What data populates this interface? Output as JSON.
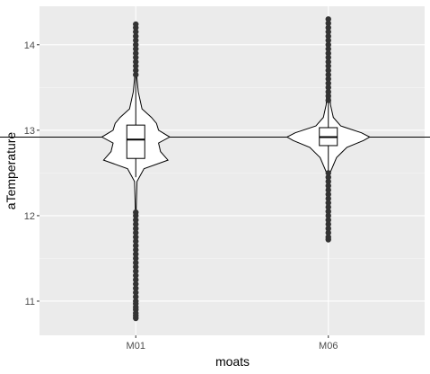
{
  "chart_data": {
    "type": "violin-boxplot",
    "title": "",
    "xlabel": "moats",
    "ylabel": "aTemperature",
    "categories": [
      "M01",
      "M06"
    ],
    "ylim": [
      10.6,
      14.45
    ],
    "yticks": [
      11,
      12,
      13,
      14
    ],
    "grid": true,
    "reference_line": 12.92,
    "colors": {
      "panel": "#ebebeb",
      "grid_major": "#ffffff",
      "grid_minor": "#f5f5f5",
      "violin_fill": "#ffffff",
      "outline": "#000000",
      "outlier": "#333333"
    },
    "series": [
      {
        "category": "M01",
        "min": 10.8,
        "max": 14.25,
        "whisker_low": 12.45,
        "whisker_high": 13.65,
        "q1": 12.67,
        "median": 12.89,
        "q3": 13.06,
        "outliers_low": [
          10.8,
          10.83,
          10.86,
          10.9,
          10.93,
          10.97,
          11.0,
          11.05,
          11.1,
          11.15,
          11.2,
          11.25,
          11.3,
          11.35,
          11.4,
          11.45,
          11.5,
          11.55,
          11.6,
          11.65,
          11.7,
          11.75,
          11.8,
          11.85,
          11.9,
          11.95,
          12.0,
          12.04
        ],
        "outliers_high": [
          13.65,
          13.7,
          13.75,
          13.8,
          13.85,
          13.9,
          13.95,
          14.0,
          14.05,
          14.1,
          14.15,
          14.2,
          14.24
        ],
        "density": [
          [
            10.8,
            0.004
          ],
          [
            12.0,
            0.006
          ],
          [
            12.4,
            0.03
          ],
          [
            12.55,
            0.2
          ],
          [
            12.65,
            0.78
          ],
          [
            12.75,
            0.6
          ],
          [
            12.85,
            0.55
          ],
          [
            12.92,
            0.82
          ],
          [
            13.0,
            0.55
          ],
          [
            13.08,
            0.5
          ],
          [
            13.15,
            0.38
          ],
          [
            13.25,
            0.15
          ],
          [
            13.45,
            0.06
          ],
          [
            13.65,
            0.02
          ],
          [
            14.25,
            0.004
          ]
        ]
      },
      {
        "category": "M06",
        "min": 11.72,
        "max": 14.32,
        "whisker_low": 12.5,
        "whisker_high": 13.35,
        "q1": 12.82,
        "median": 12.92,
        "q3": 13.03,
        "outliers_low": [
          11.72,
          11.75,
          11.8,
          11.85,
          11.9,
          11.95,
          12.0,
          12.05,
          12.1,
          12.15,
          12.2,
          12.25,
          12.3,
          12.35,
          12.4,
          12.45,
          12.5
        ],
        "outliers_high": [
          13.35,
          13.4,
          13.45,
          13.5,
          13.55,
          13.6,
          13.65,
          13.7,
          13.75,
          13.8,
          13.85,
          13.9,
          13.95,
          14.0,
          14.05,
          14.1,
          14.15,
          14.2,
          14.25,
          14.3
        ],
        "density": [
          [
            11.72,
            0.004
          ],
          [
            12.3,
            0.008
          ],
          [
            12.5,
            0.04
          ],
          [
            12.68,
            0.2
          ],
          [
            12.8,
            0.45
          ],
          [
            12.88,
            0.85
          ],
          [
            12.92,
            1.0
          ],
          [
            12.97,
            0.8
          ],
          [
            13.05,
            0.3
          ],
          [
            13.15,
            0.12
          ],
          [
            13.3,
            0.05
          ],
          [
            13.7,
            0.02
          ],
          [
            14.32,
            0.004
          ]
        ]
      }
    ]
  }
}
